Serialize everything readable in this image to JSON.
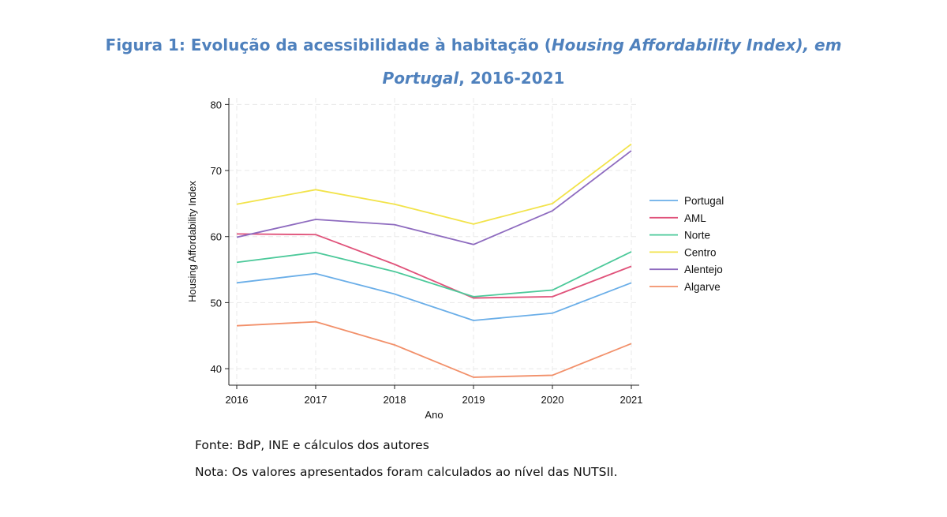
{
  "figure": {
    "title_line1_prefix": "Figura 1: Evolução da acessibilidade à habitação (",
    "title_line1_italic": "Housing Affordability Index), em",
    "title_line2_italic": "Portugal",
    "title_line2_suffix": ", 2016-2021",
    "source": "Fonte: BdP, INE e cálculos dos autores",
    "note": "Nota: Os valores apresentados foram calculados ao nível das NUTSII."
  },
  "chart_data": {
    "type": "line",
    "xlabel": "Ano",
    "ylabel": "Housing Affordability Index",
    "x": [
      2016,
      2017,
      2018,
      2019,
      2020,
      2021
    ],
    "xticks": [
      "2016",
      "2017",
      "2018",
      "2019",
      "2020",
      "2021"
    ],
    "ylim": [
      37.5,
      81
    ],
    "yticks": [
      40,
      50,
      60,
      70,
      80
    ],
    "ytick_labels": [
      "40",
      "50",
      "60",
      "70",
      "80"
    ],
    "grid": true,
    "legend_position": "right",
    "series": [
      {
        "name": "Portugal",
        "color": "#6aaee8",
        "values": [
          53.0,
          54.4,
          51.3,
          47.3,
          48.4,
          53.0
        ]
      },
      {
        "name": "AML",
        "color": "#e0527a",
        "values": [
          60.4,
          60.3,
          55.8,
          50.7,
          50.9,
          55.5
        ]
      },
      {
        "name": "Norte",
        "color": "#4cc99a",
        "values": [
          56.1,
          57.6,
          54.7,
          50.9,
          51.9,
          57.7
        ]
      },
      {
        "name": "Centro",
        "color": "#f2e34a",
        "values": [
          64.9,
          67.1,
          64.9,
          61.9,
          65.0,
          74.0
        ]
      },
      {
        "name": "Alentejo",
        "color": "#8e6bbf",
        "values": [
          59.9,
          62.6,
          61.8,
          58.8,
          63.9,
          73.0
        ]
      },
      {
        "name": "Algarve",
        "color": "#f2906a",
        "values": [
          46.5,
          47.1,
          43.6,
          38.7,
          39.0,
          43.8
        ]
      }
    ]
  }
}
